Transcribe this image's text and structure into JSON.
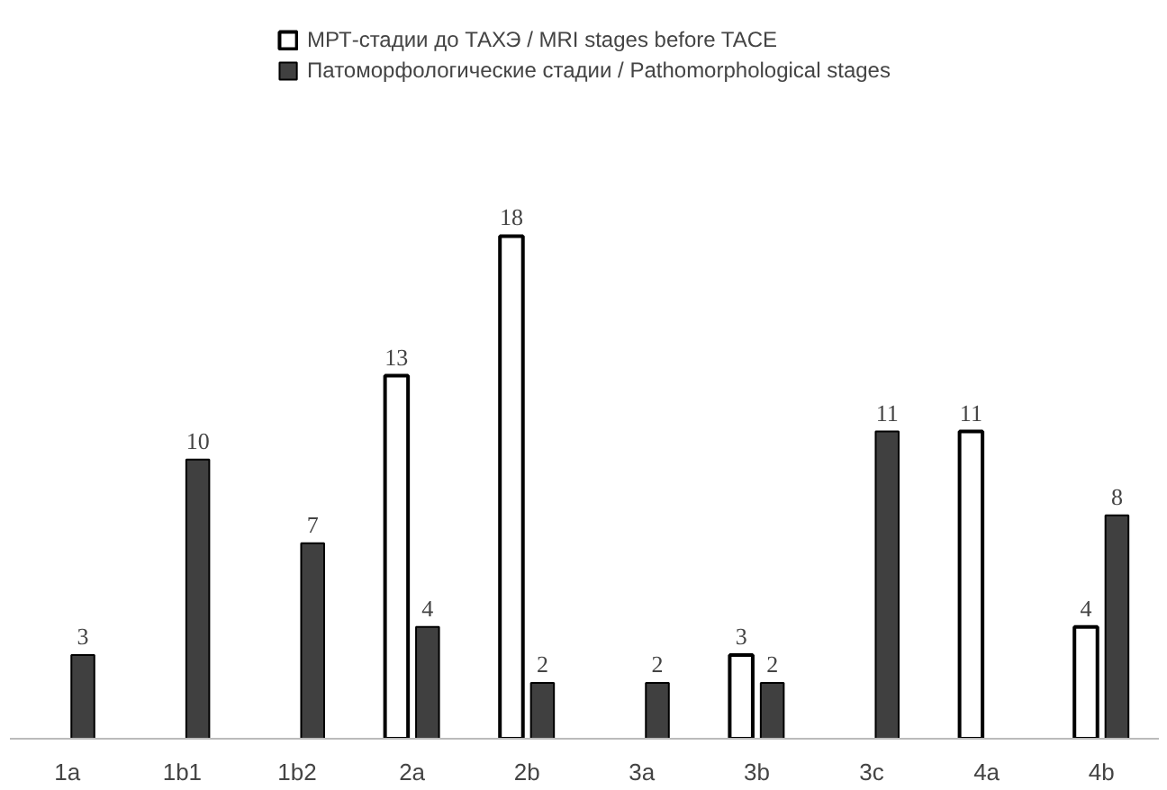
{
  "chart_data": {
    "type": "bar",
    "categories": [
      "1a",
      "1b1",
      "1b2",
      "2a",
      "2b",
      "3a",
      "3b",
      "3c",
      "4a",
      "4b"
    ],
    "series": [
      {
        "name": "МРТ-стадии до ТАХЭ / MRI stages before TACE",
        "color": "#ffffff",
        "values": [
          null,
          null,
          null,
          13,
          18,
          null,
          3,
          null,
          11,
          4
        ]
      },
      {
        "name": "Патоморфологические стадии / Pathomorphological stages",
        "color": "#404040",
        "values": [
          3,
          10,
          7,
          4,
          2,
          2,
          2,
          11,
          null,
          8
        ]
      }
    ],
    "data_labels": true,
    "legend": "top",
    "grid": false
  }
}
